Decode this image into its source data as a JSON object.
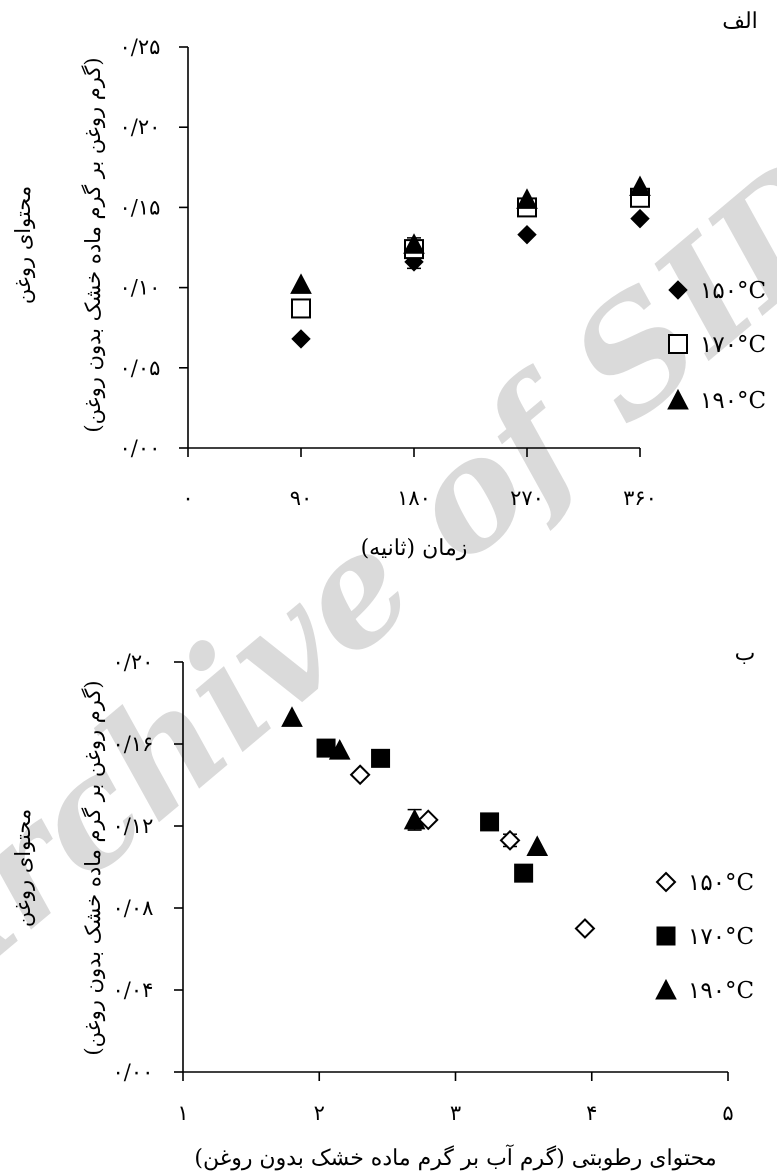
{
  "watermark": "Archive of SID",
  "chart_data": [
    {
      "panel_label": "الف",
      "type": "scatter",
      "xlabel": "زمان (ثانیه)",
      "ylabel_line1": "محتوای روغن",
      "ylabel_line2": "(گرم روغن بر گرم ماده خشک بدون روغن)",
      "x_ticks": [
        "۰",
        "۹۰",
        "۱۸۰",
        "۲۷۰",
        "۳۶۰"
      ],
      "y_ticks": [
        "۰/۰۰",
        "۰/۰۵",
        "۰/۱۰",
        "۰/۱۵",
        "۰/۲۰",
        "۰/۲۵"
      ],
      "xlim": [
        0,
        360
      ],
      "ylim": [
        0,
        0.25
      ],
      "legend_position": "right",
      "series": [
        {
          "name": "۱۵۰°C",
          "marker": "diamond-filled",
          "x": [
            90,
            180,
            270,
            360
          ],
          "y": [
            0.068,
            0.116,
            0.133,
            0.143
          ],
          "err": [
            0,
            0.004,
            0,
            0
          ]
        },
        {
          "name": "۱۷۰°C",
          "marker": "square-open",
          "x": [
            90,
            180,
            270,
            360
          ],
          "y": [
            0.087,
            0.124,
            0.15,
            0.156
          ],
          "err": [
            0,
            0.007,
            0,
            0
          ]
        },
        {
          "name": "۱۹۰°C",
          "marker": "triangle-filled",
          "x": [
            90,
            180,
            270,
            360
          ],
          "y": [
            0.102,
            0.127,
            0.155,
            0.163
          ],
          "err": [
            0,
            0,
            0,
            0
          ]
        }
      ]
    },
    {
      "panel_label": "ب",
      "type": "scatter",
      "xlabel": "محتوای رطوبتی (گرم آب بر گرم ماده خشک بدون روغن)",
      "ylabel_line1": "محتوای روغن",
      "ylabel_line2": "(گرم روغن بر گرم ماده خشک بدون روغن)",
      "x_ticks": [
        "۱",
        "۲",
        "۳",
        "۴",
        "۵"
      ],
      "y_ticks": [
        "۰/۰۰",
        "۰/۰۴",
        "۰/۰۸",
        "۰/۱۲",
        "۰/۱۶",
        "۰/۲۰"
      ],
      "xlim": [
        1,
        5
      ],
      "ylim": [
        0,
        0.2
      ],
      "legend_position": "right",
      "series": [
        {
          "name": "۱۵۰°C",
          "marker": "diamond-open",
          "x": [
            2.3,
            2.8,
            3.4,
            3.95
          ],
          "y": [
            0.145,
            0.123,
            0.113,
            0.07
          ],
          "err": [
            0,
            0,
            0.003,
            0
          ]
        },
        {
          "name": "۱۷۰°C",
          "marker": "square-filled",
          "x": [
            2.05,
            2.45,
            3.25,
            3.5
          ],
          "y": [
            0.158,
            0.153,
            0.122,
            0.097
          ],
          "err": [
            0.003,
            0.004,
            0,
            0
          ]
        },
        {
          "name": "۱۹۰°C",
          "marker": "triangle-filled",
          "x": [
            1.8,
            2.15,
            2.7,
            3.6
          ],
          "y": [
            0.173,
            0.157,
            0.123,
            0.11
          ],
          "err": [
            0,
            0,
            0.005,
            0
          ]
        }
      ]
    }
  ]
}
